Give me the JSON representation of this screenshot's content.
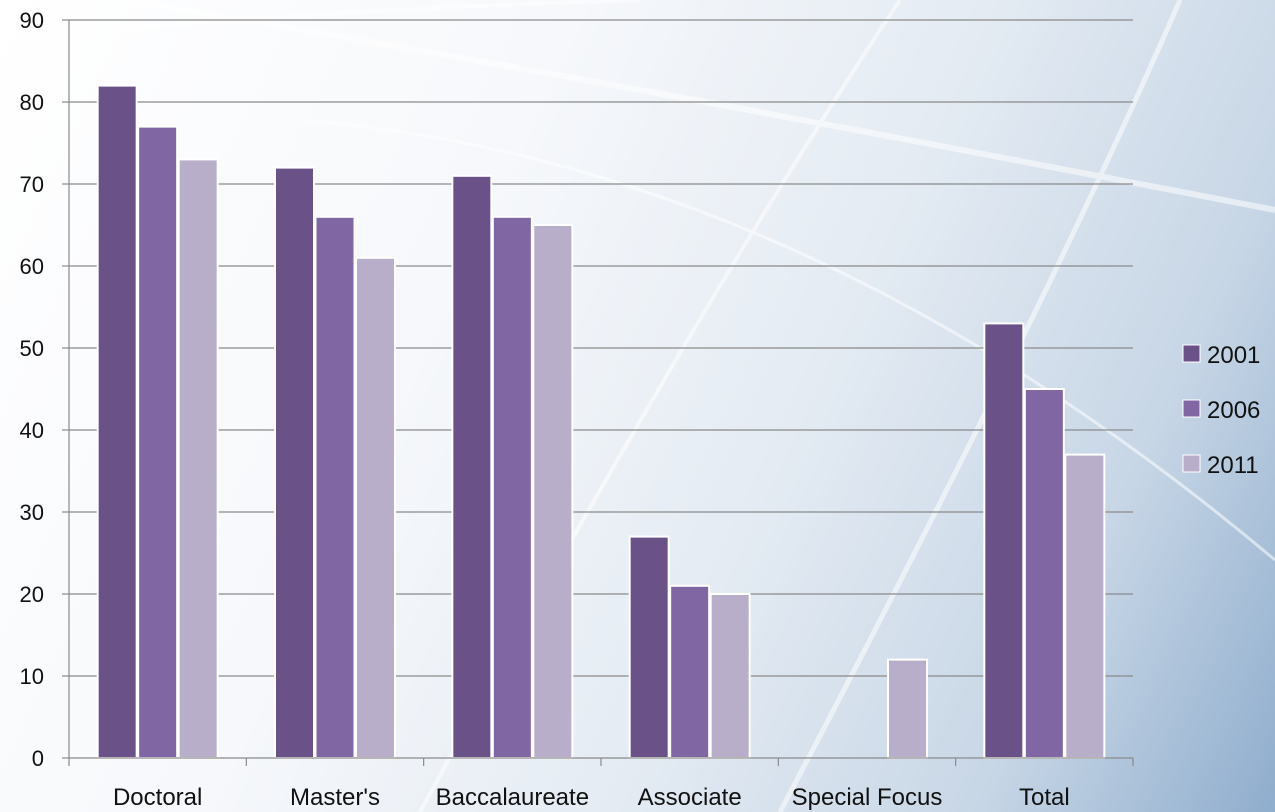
{
  "chart_data": {
    "type": "bar",
    "categories": [
      "Doctoral",
      "Master's",
      "Baccalaureate",
      "Associate",
      "Special Focus",
      "Total"
    ],
    "series": [
      {
        "name": "2001",
        "color": "#6a5289",
        "values": [
          82,
          72,
          71,
          27,
          null,
          53
        ]
      },
      {
        "name": "2006",
        "color": "#8066a3",
        "values": [
          77,
          66,
          66,
          21,
          null,
          45
        ]
      },
      {
        "name": "2011",
        "color": "#b8aec9",
        "values": [
          73,
          61,
          65,
          20,
          12,
          37
        ]
      }
    ],
    "title": "",
    "xlabel": "",
    "ylabel": "",
    "ylim": [
      0,
      90
    ],
    "yticks": [
      0,
      10,
      20,
      30,
      40,
      50,
      60,
      70,
      80,
      90
    ],
    "grid": true,
    "legend_position": "right"
  }
}
